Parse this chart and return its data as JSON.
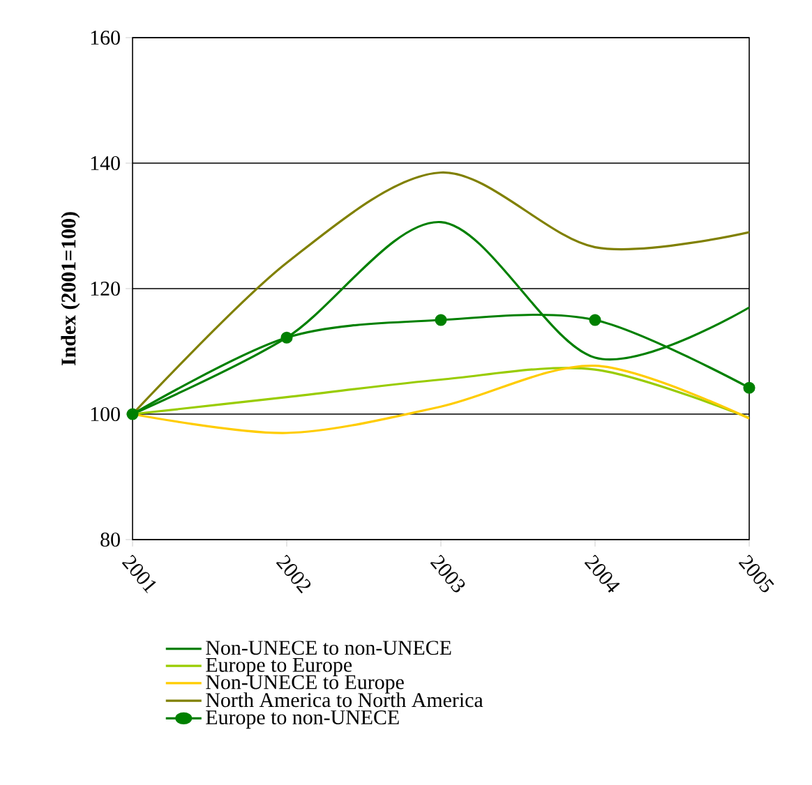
{
  "chart_data": {
    "type": "line",
    "ylabel": "Index (2001=100)",
    "x": [
      2001,
      2002,
      2003,
      2004,
      2005
    ],
    "xlim": [
      2001,
      2005
    ],
    "xticks": [
      2001,
      2002,
      2003,
      2004,
      2005
    ],
    "ylim": [
      80,
      160
    ],
    "yticks": [
      80,
      100,
      120,
      140,
      160
    ],
    "grid": "y",
    "legend": "bottom",
    "series": [
      {
        "name": "Non-UNECE to non-UNECE",
        "color": "#008000",
        "values": [
          100,
          112.2,
          130.6,
          109,
          117
        ],
        "marker": "none"
      },
      {
        "name": "Europe to Europe",
        "color": "#99cc00",
        "values": [
          100,
          102.7,
          105.5,
          107.1,
          99.4
        ],
        "marker": "none"
      },
      {
        "name": "Non-UNECE to Europe",
        "color": "#ffcc00",
        "values": [
          100,
          97,
          101.2,
          107.7,
          99.3
        ],
        "marker": "none"
      },
      {
        "name": "North America to North America",
        "color": "#808000",
        "values": [
          100,
          124.1,
          138.5,
          126.6,
          129
        ],
        "marker": "none"
      },
      {
        "name": "Europe to non-UNECE",
        "color": "#008000",
        "values": [
          100,
          112.2,
          115,
          115,
          104.2
        ],
        "marker": "circle"
      }
    ]
  }
}
